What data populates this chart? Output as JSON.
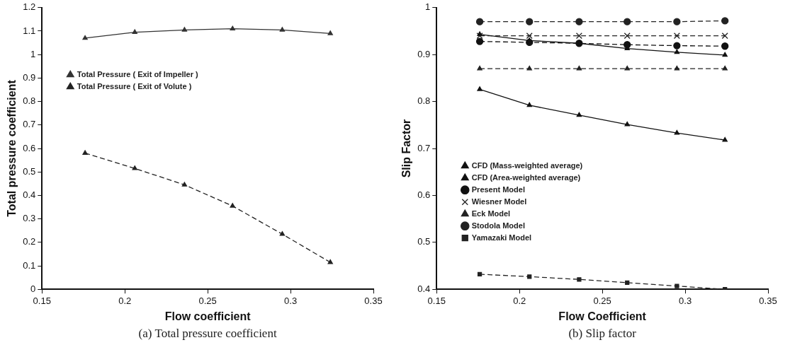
{
  "chart_data": [
    {
      "type": "line",
      "xlabel": "Flow coefficient",
      "ylabel": "Total pressure coefficient",
      "annotations": [
        "(a) Total pressure coefficient"
      ],
      "x": [
        0.176,
        0.206,
        0.236,
        0.265,
        0.295,
        0.324
      ],
      "xlim": [
        0.15,
        0.35
      ],
      "xticks": [
        0.15,
        0.2,
        0.25,
        0.3,
        0.35
      ],
      "ylim": [
        0,
        1.2
      ],
      "yticks": [
        0,
        0.1,
        0.2,
        0.3,
        0.4,
        0.5,
        0.6,
        0.7,
        0.8,
        0.9,
        1,
        1.1,
        1.2
      ],
      "grid": false,
      "legend": "top left",
      "series": [
        {
          "name": "Total Pressure ( Exit of Impeller )",
          "color": "#333333",
          "marker": "triangle",
          "line_style": "solid",
          "values": [
            1.07,
            1.095,
            1.105,
            1.11,
            1.105,
            1.09
          ]
        },
        {
          "name": "Total Pressure ( Exit of Volute )",
          "color": "#222222",
          "marker": "triangle",
          "line_style": "dashed",
          "values": [
            0.58,
            0.515,
            0.445,
            0.355,
            0.235,
            0.115
          ]
        }
      ]
    },
    {
      "type": "line",
      "xlabel": "Flow Coefficient",
      "ylabel": "Slip Factor",
      "annotations": [
        "(b) Slip factor"
      ],
      "x": [
        0.176,
        0.206,
        0.236,
        0.265,
        0.295,
        0.324
      ],
      "xlim": [
        0.15,
        0.35
      ],
      "xticks": [
        0.15,
        0.2,
        0.25,
        0.3,
        0.35
      ],
      "ylim": [
        0.4,
        1
      ],
      "yticks": [
        0.4,
        0.5,
        0.6,
        0.7,
        0.8,
        0.9,
        1
      ],
      "grid": false,
      "legend": "bottom left",
      "series": [
        {
          "name": "CFD (Mass-weighted average)",
          "color": "#111111",
          "marker": "triangle",
          "line_style": "solid",
          "values": [
            0.826,
            0.792,
            0.771,
            0.751,
            0.733,
            0.718
          ]
        },
        {
          "name": "CFD (Area-weighted average)",
          "color": "#111111",
          "marker": "triangle",
          "line_style": "solid",
          "values": [
            0.943,
            0.93,
            0.924,
            0.913,
            0.905,
            0.899
          ]
        },
        {
          "name": "Present Model",
          "color": "#111111",
          "marker": "circle",
          "line_style": "dashed",
          "values": [
            0.928,
            0.926,
            0.924,
            0.921,
            0.919,
            0.918
          ]
        },
        {
          "name": "Wiesner Model",
          "color": "#222222",
          "marker": "cross",
          "line_style": "dashed",
          "values": [
            0.94,
            0.94,
            0.94,
            0.94,
            0.94,
            0.94
          ]
        },
        {
          "name": "Eck Model",
          "color": "#222222",
          "marker": "triangle",
          "line_style": "dashed",
          "values": [
            0.87,
            0.87,
            0.87,
            0.87,
            0.87,
            0.87
          ]
        },
        {
          "name": "Stodola Model",
          "color": "#222222",
          "marker": "circle",
          "line_style": "dashed",
          "values": [
            0.97,
            0.97,
            0.97,
            0.97,
            0.97,
            0.972
          ]
        },
        {
          "name": "Yamazaki Model",
          "color": "#222222",
          "marker": "square",
          "line_style": "dashed",
          "values": [
            0.432,
            0.427,
            0.421,
            0.414,
            0.407,
            0.4
          ]
        }
      ]
    }
  ]
}
